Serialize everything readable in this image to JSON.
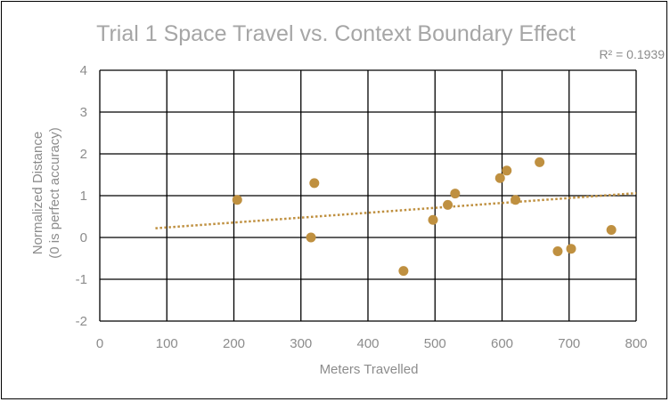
{
  "chart_data": {
    "type": "scatter",
    "title": "Trial 1 Space Travel vs. Context Boundary Effect",
    "xlabel": "Meters Travelled",
    "ylabel_lines": [
      "Normalized Distance",
      "(0 is perfect accuracy)"
    ],
    "xlim": [
      0,
      800
    ],
    "ylim": [
      -2,
      4
    ],
    "x_ticks": [
      0,
      100,
      200,
      300,
      400,
      500,
      600,
      700,
      800
    ],
    "y_ticks": [
      -2,
      -1,
      0,
      1,
      2,
      3,
      4
    ],
    "grid": true,
    "series": [
      {
        "points": [
          {
            "x": 205,
            "y": 0.9
          },
          {
            "x": 315,
            "y": 0.0
          },
          {
            "x": 320,
            "y": 1.3
          },
          {
            "x": 453,
            "y": -0.8
          },
          {
            "x": 497,
            "y": 0.42
          },
          {
            "x": 519,
            "y": 0.78
          },
          {
            "x": 530,
            "y": 1.05
          },
          {
            "x": 597,
            "y": 1.42
          },
          {
            "x": 607,
            "y": 1.6
          },
          {
            "x": 620,
            "y": 0.9
          },
          {
            "x": 656,
            "y": 1.8
          },
          {
            "x": 683,
            "y": -0.33
          },
          {
            "x": 703,
            "y": -0.27
          },
          {
            "x": 763,
            "y": 0.18
          }
        ]
      }
    ],
    "trendline": {
      "type": "linear",
      "from": {
        "x": 83,
        "y": 0.22
      },
      "to": {
        "x": 800,
        "y": 1.06
      },
      "r_squared_label": "R² = 0.1939"
    },
    "colors": {
      "marker": "#bf9040",
      "trendline": "#bf9040",
      "grid": "#000000",
      "text": "#8c8c8c",
      "title": "#a6a6a6"
    }
  }
}
